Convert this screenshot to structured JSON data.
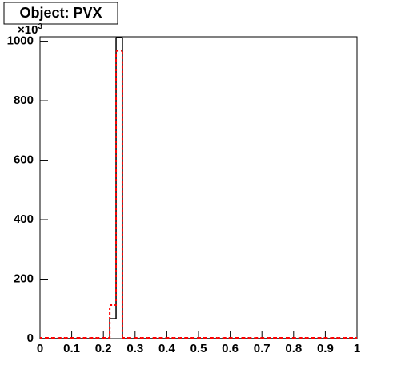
{
  "chart_data": {
    "type": "histogram",
    "title": "Object: PVX",
    "y_multiplier": "×10",
    "y_multiplier_exp": "3",
    "bins": [
      0,
      0.02,
      0.04,
      0.06,
      0.08,
      0.1,
      0.12,
      0.14,
      0.16,
      0.18,
      0.2,
      0.22,
      0.24,
      0.26,
      0.28,
      0.3,
      0.32,
      0.34,
      0.36,
      0.38,
      0.4,
      0.42,
      0.44,
      0.46,
      0.48,
      0.5,
      0.52,
      0.54,
      0.56,
      0.58,
      0.6,
      0.62,
      0.64,
      0.66,
      0.68,
      0.7,
      0.72,
      0.74,
      0.76,
      0.78,
      0.8,
      0.82,
      0.84,
      0.86,
      0.88,
      0.9,
      0.92,
      0.94,
      0.96,
      0.98,
      1
    ],
    "series": [
      {
        "color": "#000000",
        "style": "solid",
        "values": [
          0,
          0,
          0,
          0,
          0,
          0,
          0,
          0,
          0,
          0,
          0,
          67,
          1013,
          0,
          0,
          0,
          0,
          0,
          0,
          0,
          0,
          0,
          0,
          0,
          0,
          0,
          0,
          0,
          0,
          0,
          0,
          0,
          0,
          0,
          0,
          0,
          0,
          0,
          0,
          0,
          0,
          0,
          0,
          0,
          0,
          0,
          0,
          0,
          0,
          0
        ]
      },
      {
        "color": "#ff0000",
        "style": "dashed",
        "values": [
          0,
          0,
          0,
          0,
          0,
          0,
          0,
          0,
          0,
          0,
          0,
          110,
          965,
          0,
          0,
          0,
          0,
          0,
          0,
          0,
          0,
          0,
          0,
          0,
          0,
          0,
          0,
          0,
          0,
          0,
          0,
          0,
          0,
          0,
          0,
          0,
          0,
          0,
          0,
          0,
          0,
          0,
          0,
          0,
          0,
          0,
          0,
          0,
          0,
          0
        ]
      }
    ],
    "xlim": [
      0,
      1
    ],
    "ylim": [
      0,
      1015
    ],
    "xticks": [
      0,
      0.1,
      0.2,
      0.3,
      0.4,
      0.5,
      0.6,
      0.7,
      0.8,
      0.9,
      1
    ],
    "yticks": [
      0,
      200,
      400,
      600,
      800,
      1000
    ]
  }
}
